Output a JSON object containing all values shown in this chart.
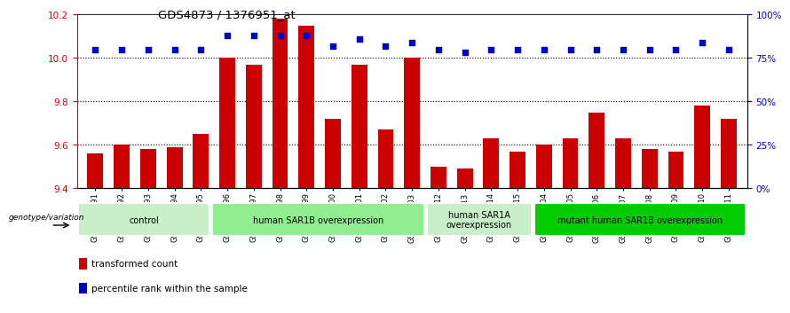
{
  "title": "GDS4873 / 1376951_at",
  "samples": [
    "GSM1279591",
    "GSM1279592",
    "GSM1279593",
    "GSM1279594",
    "GSM1279595",
    "GSM1279596",
    "GSM1279597",
    "GSM1279598",
    "GSM1279599",
    "GSM1279600",
    "GSM1279601",
    "GSM1279602",
    "GSM1279603",
    "GSM1279612",
    "GSM1279613",
    "GSM1279614",
    "GSM1279615",
    "GSM1279604",
    "GSM1279605",
    "GSM1279606",
    "GSM1279607",
    "GSM1279608",
    "GSM1279609",
    "GSM1279610",
    "GSM1279611"
  ],
  "red_values": [
    9.56,
    9.6,
    9.58,
    9.59,
    9.65,
    10.0,
    9.97,
    10.18,
    10.15,
    9.72,
    9.97,
    9.67,
    10.0,
    9.5,
    9.49,
    9.63,
    9.57,
    9.6,
    9.63,
    9.75,
    9.63,
    9.58,
    9.57,
    9.78,
    9.72
  ],
  "blue_values": [
    80,
    80,
    80,
    80,
    80,
    88,
    88,
    88,
    88,
    82,
    86,
    82,
    84,
    80,
    78,
    80,
    80,
    80,
    80,
    80,
    80,
    80,
    80,
    84,
    80
  ],
  "groups": [
    {
      "label": "control",
      "start": 0,
      "end": 5,
      "color": "#c8f0c8"
    },
    {
      "label": "human SAR1B overexpression",
      "start": 5,
      "end": 13,
      "color": "#90ee90"
    },
    {
      "label": "human SAR1A\noverexpression",
      "start": 13,
      "end": 17,
      "color": "#c8f0c8"
    },
    {
      "label": "mutant human SAR1B overexpression",
      "start": 17,
      "end": 25,
      "color": "#00cc00"
    }
  ],
  "ylim_left": [
    9.4,
    10.2
  ],
  "ylim_right": [
    0,
    100
  ],
  "yticks_left": [
    9.4,
    9.6,
    9.8,
    10.0,
    10.2
  ],
  "yticks_right": [
    0,
    25,
    50,
    75,
    100
  ],
  "bar_color": "#cc0000",
  "dot_color": "#0000cc",
  "background_color": "#ffffff",
  "genotype_label": "genotype/variation",
  "legend_items": [
    {
      "label": "transformed count",
      "color": "#cc0000"
    },
    {
      "label": "percentile rank within the sample",
      "color": "#0000cc"
    }
  ]
}
